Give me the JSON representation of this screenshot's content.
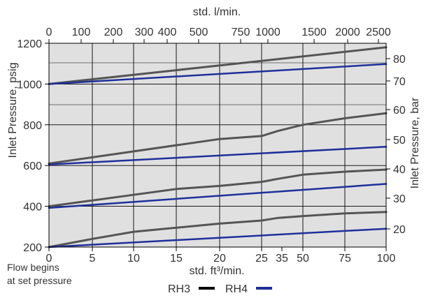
{
  "chart_data": {
    "type": "line",
    "title": "",
    "xlabel": "std. ft³/min.",
    "ylabel": "Inlet Pressure, psig",
    "xlabel_top": "std. l/min.",
    "ylabel_right": "Inlet Pressure, bar",
    "xlim": [
      0,
      100
    ],
    "ylim": [
      200,
      1200
    ],
    "grid": true,
    "x_ticks": [
      "0",
      "5",
      "10",
      "15",
      "20",
      "25",
      "35",
      "50",
      "75",
      "100"
    ],
    "y_ticks": [
      "200",
      "400",
      "600",
      "800",
      "1000",
      "1200"
    ],
    "x_top_ticks": [
      "0",
      "100",
      "200",
      "300",
      "400",
      "500",
      "750",
      "1000",
      "1500",
      "2000",
      "2500"
    ],
    "y_right_ticks": [
      "20",
      "30",
      "40",
      "50",
      "60",
      "70",
      "80"
    ],
    "note": "Flow begins\nat set pressure",
    "legend": {
      "placement": "bottom-center",
      "entries": [
        "RH3",
        "RH4"
      ]
    },
    "colors": {
      "RH3": "#555555",
      "RH4": "#1f2f9a"
    },
    "series": [
      {
        "name": "RH3",
        "x": [
          0,
          100
        ],
        "y": [
          1000,
          1180
        ]
      },
      {
        "name": "RH3",
        "x": [
          0,
          20,
          25,
          35,
          50,
          75,
          100
        ],
        "y": [
          610,
          730,
          745,
          770,
          800,
          832,
          857
        ]
      },
      {
        "name": "RH3",
        "x": [
          0,
          15,
          20,
          25,
          35,
          50,
          75,
          100
        ],
        "y": [
          400,
          485,
          500,
          520,
          535,
          555,
          570,
          580
        ]
      },
      {
        "name": "RH3",
        "x": [
          0,
          5,
          10,
          15,
          20,
          25,
          35,
          50,
          75,
          100
        ],
        "y": [
          200,
          240,
          275,
          295,
          315,
          330,
          343,
          352,
          365,
          372
        ]
      },
      {
        "name": "RH4",
        "x": [
          0,
          100
        ],
        "y": [
          1000,
          1098
        ]
      },
      {
        "name": "RH4",
        "x": [
          0,
          100
        ],
        "y": [
          605,
          692
        ]
      },
      {
        "name": "RH4",
        "x": [
          0,
          100
        ],
        "y": [
          392,
          510
        ]
      },
      {
        "name": "RH4",
        "x": [
          0,
          100
        ],
        "y": [
          200,
          290
        ]
      }
    ]
  }
}
